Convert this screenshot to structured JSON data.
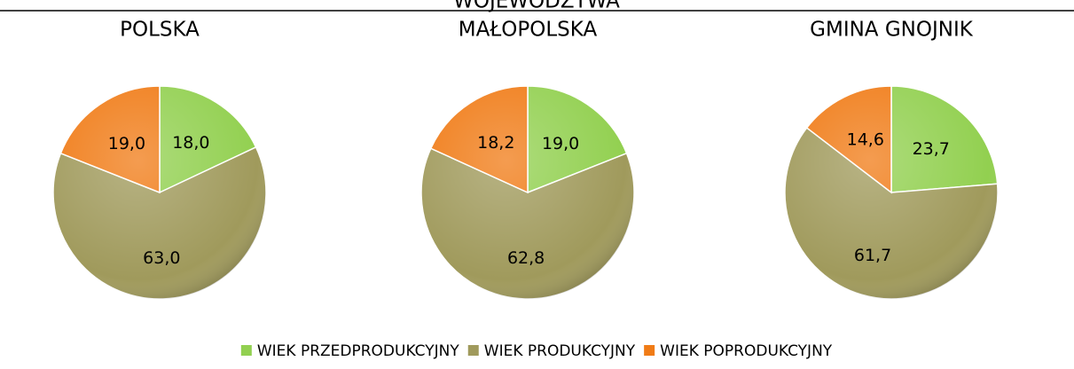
{
  "header_text": "WOJEWÓDZTWA",
  "chart_data": [
    {
      "type": "pie",
      "title": "POLSKA",
      "categories": [
        "WIEK PRZEDPRODUKCYJNY",
        "WIEK PRODUKCYJNY",
        "WIEK POPRODUKCYJNY"
      ],
      "values": [
        18.0,
        63.0,
        19.0
      ],
      "value_labels": [
        "18,0",
        "63,0",
        "19,0"
      ],
      "colors": [
        "#92d050",
        "#a09a5c",
        "#f07b16"
      ]
    },
    {
      "type": "pie",
      "title": "MAŁOPOLSKA",
      "categories": [
        "WIEK PRZEDPRODUKCYJNY",
        "WIEK PRODUKCYJNY",
        "WIEK POPRODUKCYJNY"
      ],
      "values": [
        19.0,
        62.8,
        18.2
      ],
      "value_labels": [
        "19,0",
        "62,8",
        "18,2"
      ],
      "colors": [
        "#92d050",
        "#a09a5c",
        "#f07b16"
      ]
    },
    {
      "type": "pie",
      "title": "GMINA GNOJNIK",
      "categories": [
        "WIEK PRZEDPRODUKCYJNY",
        "WIEK PRODUKCYJNY",
        "WIEK POPRODUKCYJNY"
      ],
      "values": [
        23.7,
        61.7,
        14.6
      ],
      "value_labels": [
        "23,7",
        "61,7",
        "14,6"
      ],
      "colors": [
        "#92d050",
        "#a09a5c",
        "#f07b16"
      ]
    }
  ]
}
